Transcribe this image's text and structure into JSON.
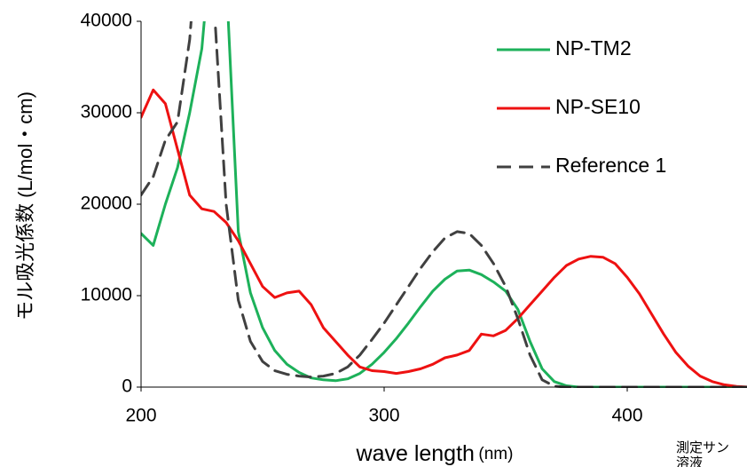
{
  "chart_data": {
    "type": "line",
    "x_label": "wave length",
    "x_unit": "(nm)",
    "y_label": "モル吸光係数 (L/mol・cm)",
    "annotations": [
      "測定サン",
      "溶液"
    ],
    "x": [
      200,
      205,
      210,
      215,
      220,
      225,
      230,
      235,
      240,
      245,
      250,
      255,
      260,
      265,
      270,
      275,
      280,
      285,
      290,
      295,
      300,
      305,
      310,
      315,
      320,
      325,
      330,
      335,
      340,
      345,
      350,
      355,
      360,
      365,
      370,
      375,
      380,
      385,
      390,
      395,
      400,
      405,
      410,
      415,
      420,
      425,
      430,
      435,
      440,
      445,
      450
    ],
    "xlim": [
      200,
      450
    ],
    "xticks": [
      200,
      300,
      400
    ],
    "ylim": [
      0,
      40000
    ],
    "yticks": [
      0,
      10000,
      20000,
      30000,
      40000
    ],
    "grid": false,
    "legend": "upper right",
    "series": [
      {
        "name": "NP-TM2",
        "color": "#1db15a",
        "dash": "solid",
        "values": [
          16800,
          15500,
          20000,
          24000,
          30000,
          37000,
          52000,
          45000,
          17000,
          10300,
          6500,
          4000,
          2500,
          1600,
          1000,
          800,
          700,
          900,
          1500,
          2500,
          3800,
          5300,
          7000,
          8800,
          10500,
          11800,
          12700,
          12800,
          12300,
          11500,
          10500,
          8500,
          5000,
          2000,
          600,
          150,
          0,
          0,
          0,
          0,
          0,
          0,
          0,
          0,
          0,
          0,
          0,
          0,
          0,
          0,
          0
        ]
      },
      {
        "name": "NP-SE10",
        "color": "#ee1111",
        "dash": "solid",
        "values": [
          29500,
          32500,
          31000,
          26000,
          21000,
          19500,
          19200,
          18000,
          16000,
          13500,
          11000,
          9800,
          10300,
          10500,
          9000,
          6500,
          5000,
          3500,
          2200,
          1800,
          1700,
          1500,
          1700,
          2000,
          2500,
          3200,
          3500,
          4000,
          5800,
          5600,
          6200,
          7500,
          9000,
          10500,
          12000,
          13300,
          14000,
          14300,
          14200,
          13500,
          12000,
          10200,
          8000,
          5800,
          3800,
          2300,
          1200,
          600,
          250,
          80,
          0
        ]
      },
      {
        "name": "Reference 1",
        "color": "#404040",
        "dash": "dashed",
        "values": [
          21000,
          23000,
          27000,
          29000,
          38000,
          55000,
          42000,
          20000,
          9500,
          5000,
          2800,
          1800,
          1400,
          1200,
          1100,
          1200,
          1500,
          2200,
          3500,
          5200,
          7000,
          9000,
          11000,
          13000,
          14800,
          16300,
          17000,
          16800,
          15500,
          13500,
          11000,
          7500,
          3500,
          800,
          100,
          0,
          0,
          0,
          0,
          0,
          0,
          0,
          0,
          0,
          0,
          0,
          0,
          0,
          0,
          0,
          0
        ]
      }
    ]
  }
}
